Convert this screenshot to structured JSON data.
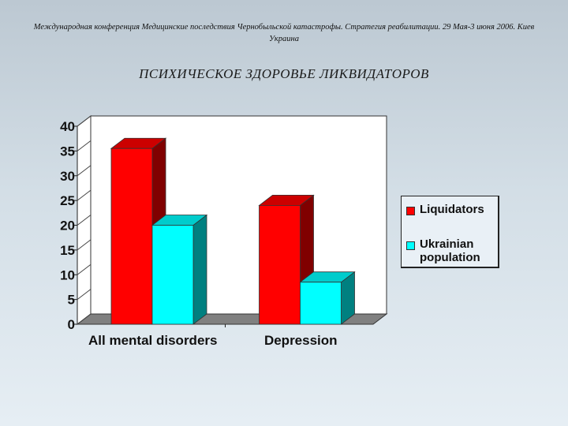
{
  "header": {
    "conference": "Международная конференция Медицинские последствия Чернобыльской катастрофы. Стратегия реабилитации. 29 Мая-3 июня 2006. Киев Украина"
  },
  "slide": {
    "title": "ПСИХИЧЕСКОЕ ЗДОРОВЬЕ ЛИКВИДАТОРОВ"
  },
  "colors": {
    "liquidators": "#ff0000",
    "ukrainian": "#00ffff"
  },
  "chart_data": {
    "type": "bar",
    "categories": [
      "All mental disorders",
      "Depression"
    ],
    "series": [
      {
        "name": "Liquidators",
        "values": [
          35.5,
          24
        ]
      },
      {
        "name": "Ukrainian population",
        "values": [
          20,
          8.5
        ]
      }
    ],
    "yticks": [
      "0",
      "5",
      "10",
      "15",
      "20",
      "25",
      "30",
      "35",
      "40"
    ],
    "ylim": [
      0,
      40
    ],
    "grid": false,
    "legend_position": "right",
    "style": "3d"
  },
  "legend": {
    "items": [
      {
        "label": "Liquidators"
      },
      {
        "label": "Ukrainian population"
      }
    ]
  }
}
